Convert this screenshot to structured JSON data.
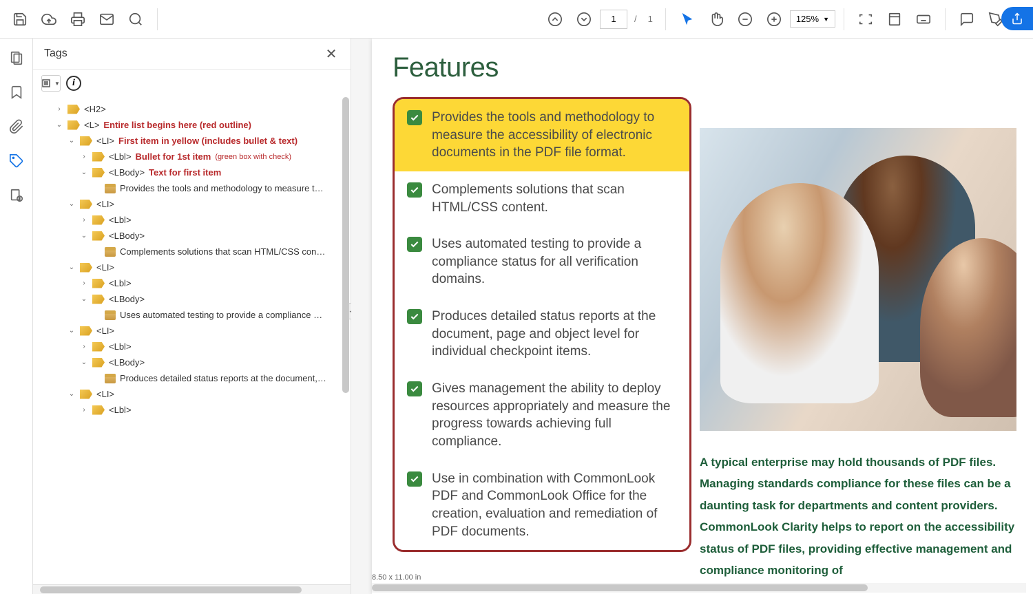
{
  "toolbar": {
    "page_current": "1",
    "page_total": "1",
    "zoom": "125%"
  },
  "tags_panel": {
    "title": "Tags",
    "tree": [
      {
        "indent": 1,
        "chevron": "right",
        "icon": "tag",
        "label": "<H2>",
        "ann": ""
      },
      {
        "indent": 1,
        "chevron": "down",
        "icon": "tag",
        "label": "<L>",
        "ann": "Entire list begins here (red outline)"
      },
      {
        "indent": 2,
        "chevron": "down",
        "icon": "tag",
        "label": "<LI>",
        "ann": "First item in yellow (includes bullet & text)"
      },
      {
        "indent": 3,
        "chevron": "right",
        "icon": "tag",
        "label": "<Lbl>",
        "ann": "Bullet for 1st item",
        "ann2": "(green box with check)"
      },
      {
        "indent": 3,
        "chevron": "down",
        "icon": "tag",
        "label": "<LBody>",
        "ann": "Text for first item"
      },
      {
        "indent": 4,
        "chevron": "",
        "icon": "box",
        "label": "",
        "text": "Provides the tools and methodology to measure the a..."
      },
      {
        "indent": 2,
        "chevron": "down",
        "icon": "tag",
        "label": "<LI>",
        "ann": ""
      },
      {
        "indent": 3,
        "chevron": "right",
        "icon": "tag",
        "label": "<Lbl>",
        "ann": ""
      },
      {
        "indent": 3,
        "chevron": "down",
        "icon": "tag",
        "label": "<LBody>",
        "ann": ""
      },
      {
        "indent": 4,
        "chevron": "",
        "icon": "box",
        "label": "",
        "text": "Complements solutions that scan HTML/CSS content."
      },
      {
        "indent": 2,
        "chevron": "down",
        "icon": "tag",
        "label": "<LI>",
        "ann": ""
      },
      {
        "indent": 3,
        "chevron": "right",
        "icon": "tag",
        "label": "<Lbl>",
        "ann": ""
      },
      {
        "indent": 3,
        "chevron": "down",
        "icon": "tag",
        "label": "<LBody>",
        "ann": ""
      },
      {
        "indent": 4,
        "chevron": "",
        "icon": "box",
        "label": "",
        "text": "Uses automated testing to provide a compliance status"
      },
      {
        "indent": 2,
        "chevron": "down",
        "icon": "tag",
        "label": "<LI>",
        "ann": ""
      },
      {
        "indent": 3,
        "chevron": "right",
        "icon": "tag",
        "label": "<Lbl>",
        "ann": ""
      },
      {
        "indent": 3,
        "chevron": "down",
        "icon": "tag",
        "label": "<LBody>",
        "ann": ""
      },
      {
        "indent": 4,
        "chevron": "",
        "icon": "box",
        "label": "",
        "text": "Produces detailed status reports at the document, p..."
      },
      {
        "indent": 2,
        "chevron": "down",
        "icon": "tag",
        "label": "<LI>",
        "ann": ""
      },
      {
        "indent": 3,
        "chevron": "right",
        "icon": "tag",
        "label": "<Lbl>",
        "ann": ""
      }
    ]
  },
  "document": {
    "heading": "Features",
    "features": [
      {
        "text": "Provides the tools and methodology to measure the accessibility of electronic documents in the PDF file format.",
        "highlighted": true
      },
      {
        "text": "Complements solutions that scan HTML/CSS content.",
        "highlighted": false
      },
      {
        "text": "Uses automated testing to provide a compliance status for all verification domains.",
        "highlighted": false
      },
      {
        "text": "Produces detailed status reports at the document, page and object level for individual checkpoint items.",
        "highlighted": false
      },
      {
        "text": "Gives management the ability to deploy resources appropriately and measure the progress towards achieving full compliance.",
        "highlighted": false
      },
      {
        "text": "Use in combination with CommonLook PDF and CommonLook Office for the creation, evaluation and remediation of PDF documents.",
        "highlighted": false
      }
    ],
    "body_para": "A typical enterprise may hold thousands of PDF files. Managing standards compliance for these files can be a daunting task for departments and content providers. CommonLook Clarity helps to report on the accessibility status of PDF files, providing effective management and compliance monitoring of",
    "page_size": "8.50 x 11.00 in"
  },
  "colors": {
    "feature_border": "#9a2d2e",
    "highlight_bg": "#fdd836",
    "check_bg": "#3a8a3f",
    "heading_color": "#2d5f3e",
    "body_color": "#1e5e3a",
    "annotation_color": "#b8292b"
  }
}
